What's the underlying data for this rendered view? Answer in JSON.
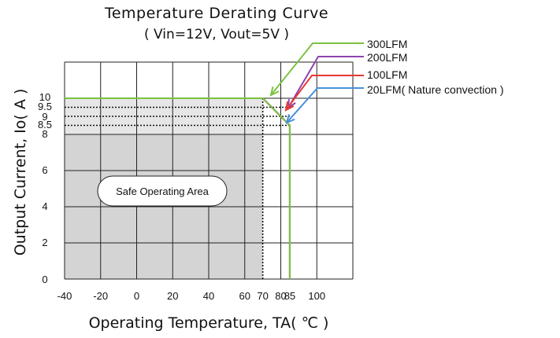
{
  "chart_data": {
    "type": "line",
    "title": "Temperature Derating Curve",
    "subtitle": "( Vin=12V, Vout=5V )",
    "xlabel": "Operating Temperature, TA( ℃ )",
    "ylabel": "Output Current, Io( A )",
    "xlim": [
      -40,
      120
    ],
    "ylim": [
      0,
      12
    ],
    "grid": true,
    "xticks": [
      {
        "value": -40,
        "label": "-40"
      },
      {
        "value": -20,
        "label": "-20"
      },
      {
        "value": 0,
        "label": "0"
      },
      {
        "value": 20,
        "label": "20"
      },
      {
        "value": 40,
        "label": "40"
      },
      {
        "value": 60,
        "label": "60"
      },
      {
        "value": 70,
        "label": "70"
      },
      {
        "value": 80,
        "label": "80"
      },
      {
        "value": 85,
        "label": "85"
      },
      {
        "value": 100,
        "label": "100"
      }
    ],
    "yticks": [
      {
        "value": 0,
        "label": "0"
      },
      {
        "value": 2,
        "label": "2"
      },
      {
        "value": 4,
        "label": "4"
      },
      {
        "value": 6,
        "label": "6"
      },
      {
        "value": 8,
        "label": "8"
      },
      {
        "value": 8.5,
        "label": "8.5"
      },
      {
        "value": 9,
        "label": "9"
      },
      {
        "value": 9.5,
        "label": "9.5"
      },
      {
        "value": 10,
        "label": "10"
      }
    ],
    "series": [
      {
        "name": "300LFM",
        "color": "#7cc242",
        "x": [
          -40,
          70,
          85,
          85
        ],
        "y": [
          10,
          10,
          8.5,
          0
        ]
      },
      {
        "name": "200LFM",
        "color": "#8e44ad",
        "x": [
          -40,
          70,
          85,
          85
        ],
        "y": [
          10,
          10,
          8.5,
          0
        ]
      },
      {
        "name": "100LFM",
        "color": "#e53935",
        "x": [
          -40,
          70,
          85,
          85
        ],
        "y": [
          10,
          10,
          8.5,
          0
        ]
      },
      {
        "name": "20LFM( Nature convection )",
        "color": "#4a90d9",
        "x": [
          -40,
          70,
          85,
          85
        ],
        "y": [
          10,
          10,
          8.5,
          0
        ]
      }
    ],
    "safe_area": {
      "label": "Safe Operating Area",
      "fill": "#d4d4d4",
      "x_max": 70,
      "y_max": 8
    },
    "reference_lines": {
      "x": [
        70
      ],
      "y": [
        8.5,
        9,
        9.5
      ]
    },
    "legend": {
      "placement": "top-right",
      "style": "callout arrows"
    }
  }
}
